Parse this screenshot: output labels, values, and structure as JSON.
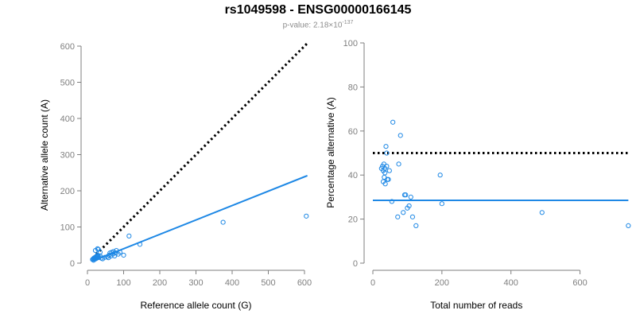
{
  "title": "rs1049598 - ENSG00000166145",
  "subtitle": {
    "prefix": "p-value: 2.18×10",
    "exponent": "-137"
  },
  "chart_data": [
    {
      "type": "scatter",
      "xlabel": "Reference allele count (G)",
      "ylabel": "Alternative allele count (A)",
      "xlim": [
        0,
        600
      ],
      "ylim": [
        0,
        600
      ],
      "xticks": [
        0,
        100,
        200,
        300,
        400,
        500,
        600
      ],
      "yticks": [
        0,
        100,
        200,
        300,
        400,
        500,
        600
      ],
      "grid": false,
      "points": {
        "color": "#1e88e5",
        "x": [
          14,
          16,
          17,
          18,
          19,
          20,
          21,
          22,
          23,
          24,
          25,
          26,
          27,
          28,
          29,
          30,
          22,
          28,
          35,
          30,
          35,
          38,
          42,
          48,
          55,
          58,
          60,
          62,
          65,
          67,
          70,
          72,
          75,
          78,
          80,
          85,
          90,
          100,
          115,
          145,
          375,
          605
        ],
        "y": [
          10,
          12,
          8,
          14,
          11,
          15,
          13,
          16,
          12,
          18,
          14,
          20,
          17,
          22,
          15,
          19,
          35,
          40,
          30,
          38,
          20,
          14,
          12,
          16,
          18,
          15,
          22,
          28,
          20,
          30,
          25,
          32,
          20,
          28,
          35,
          25,
          30,
          22,
          75,
          52,
          113,
          130
        ]
      },
      "reference_line": {
        "style": "dotted",
        "color": "#000000",
        "from": [
          15,
          15
        ],
        "to": [
          608,
          608
        ]
      },
      "fit_line": {
        "color": "#1e88e5",
        "from": [
          15,
          6
        ],
        "to": [
          608,
          242
        ]
      }
    },
    {
      "type": "scatter",
      "xlabel": "Total number of reads",
      "ylabel": "Percentage alternative (A)",
      "xlim": [
        0,
        700
      ],
      "ylim": [
        0,
        100
      ],
      "xticks": [
        0,
        200,
        400,
        600
      ],
      "yticks": [
        0,
        20,
        40,
        60,
        80,
        100
      ],
      "grid": false,
      "points": {
        "color": "#1e88e5",
        "x": [
          25,
          28,
          30,
          30,
          32,
          33,
          35,
          35,
          36,
          38,
          40,
          40,
          42,
          45,
          48,
          55,
          58,
          72,
          75,
          80,
          88,
          92,
          95,
          100,
          105,
          110,
          115,
          125,
          195,
          200,
          490,
          740
        ],
        "y": [
          43,
          44,
          42,
          37,
          45,
          39,
          41,
          43,
          36,
          53,
          44,
          50,
          38,
          38,
          42,
          28,
          64,
          21,
          45,
          58,
          23,
          31,
          31,
          25,
          26,
          30,
          21,
          17,
          40,
          27,
          23,
          17
        ]
      },
      "reference_line": {
        "style": "dotted",
        "color": "#000000",
        "from": [
          0,
          50
        ],
        "to": [
          740,
          50
        ]
      },
      "fit_line": {
        "color": "#1e88e5",
        "from": [
          0,
          28.5
        ],
        "to": [
          740,
          28.5
        ]
      }
    }
  ]
}
